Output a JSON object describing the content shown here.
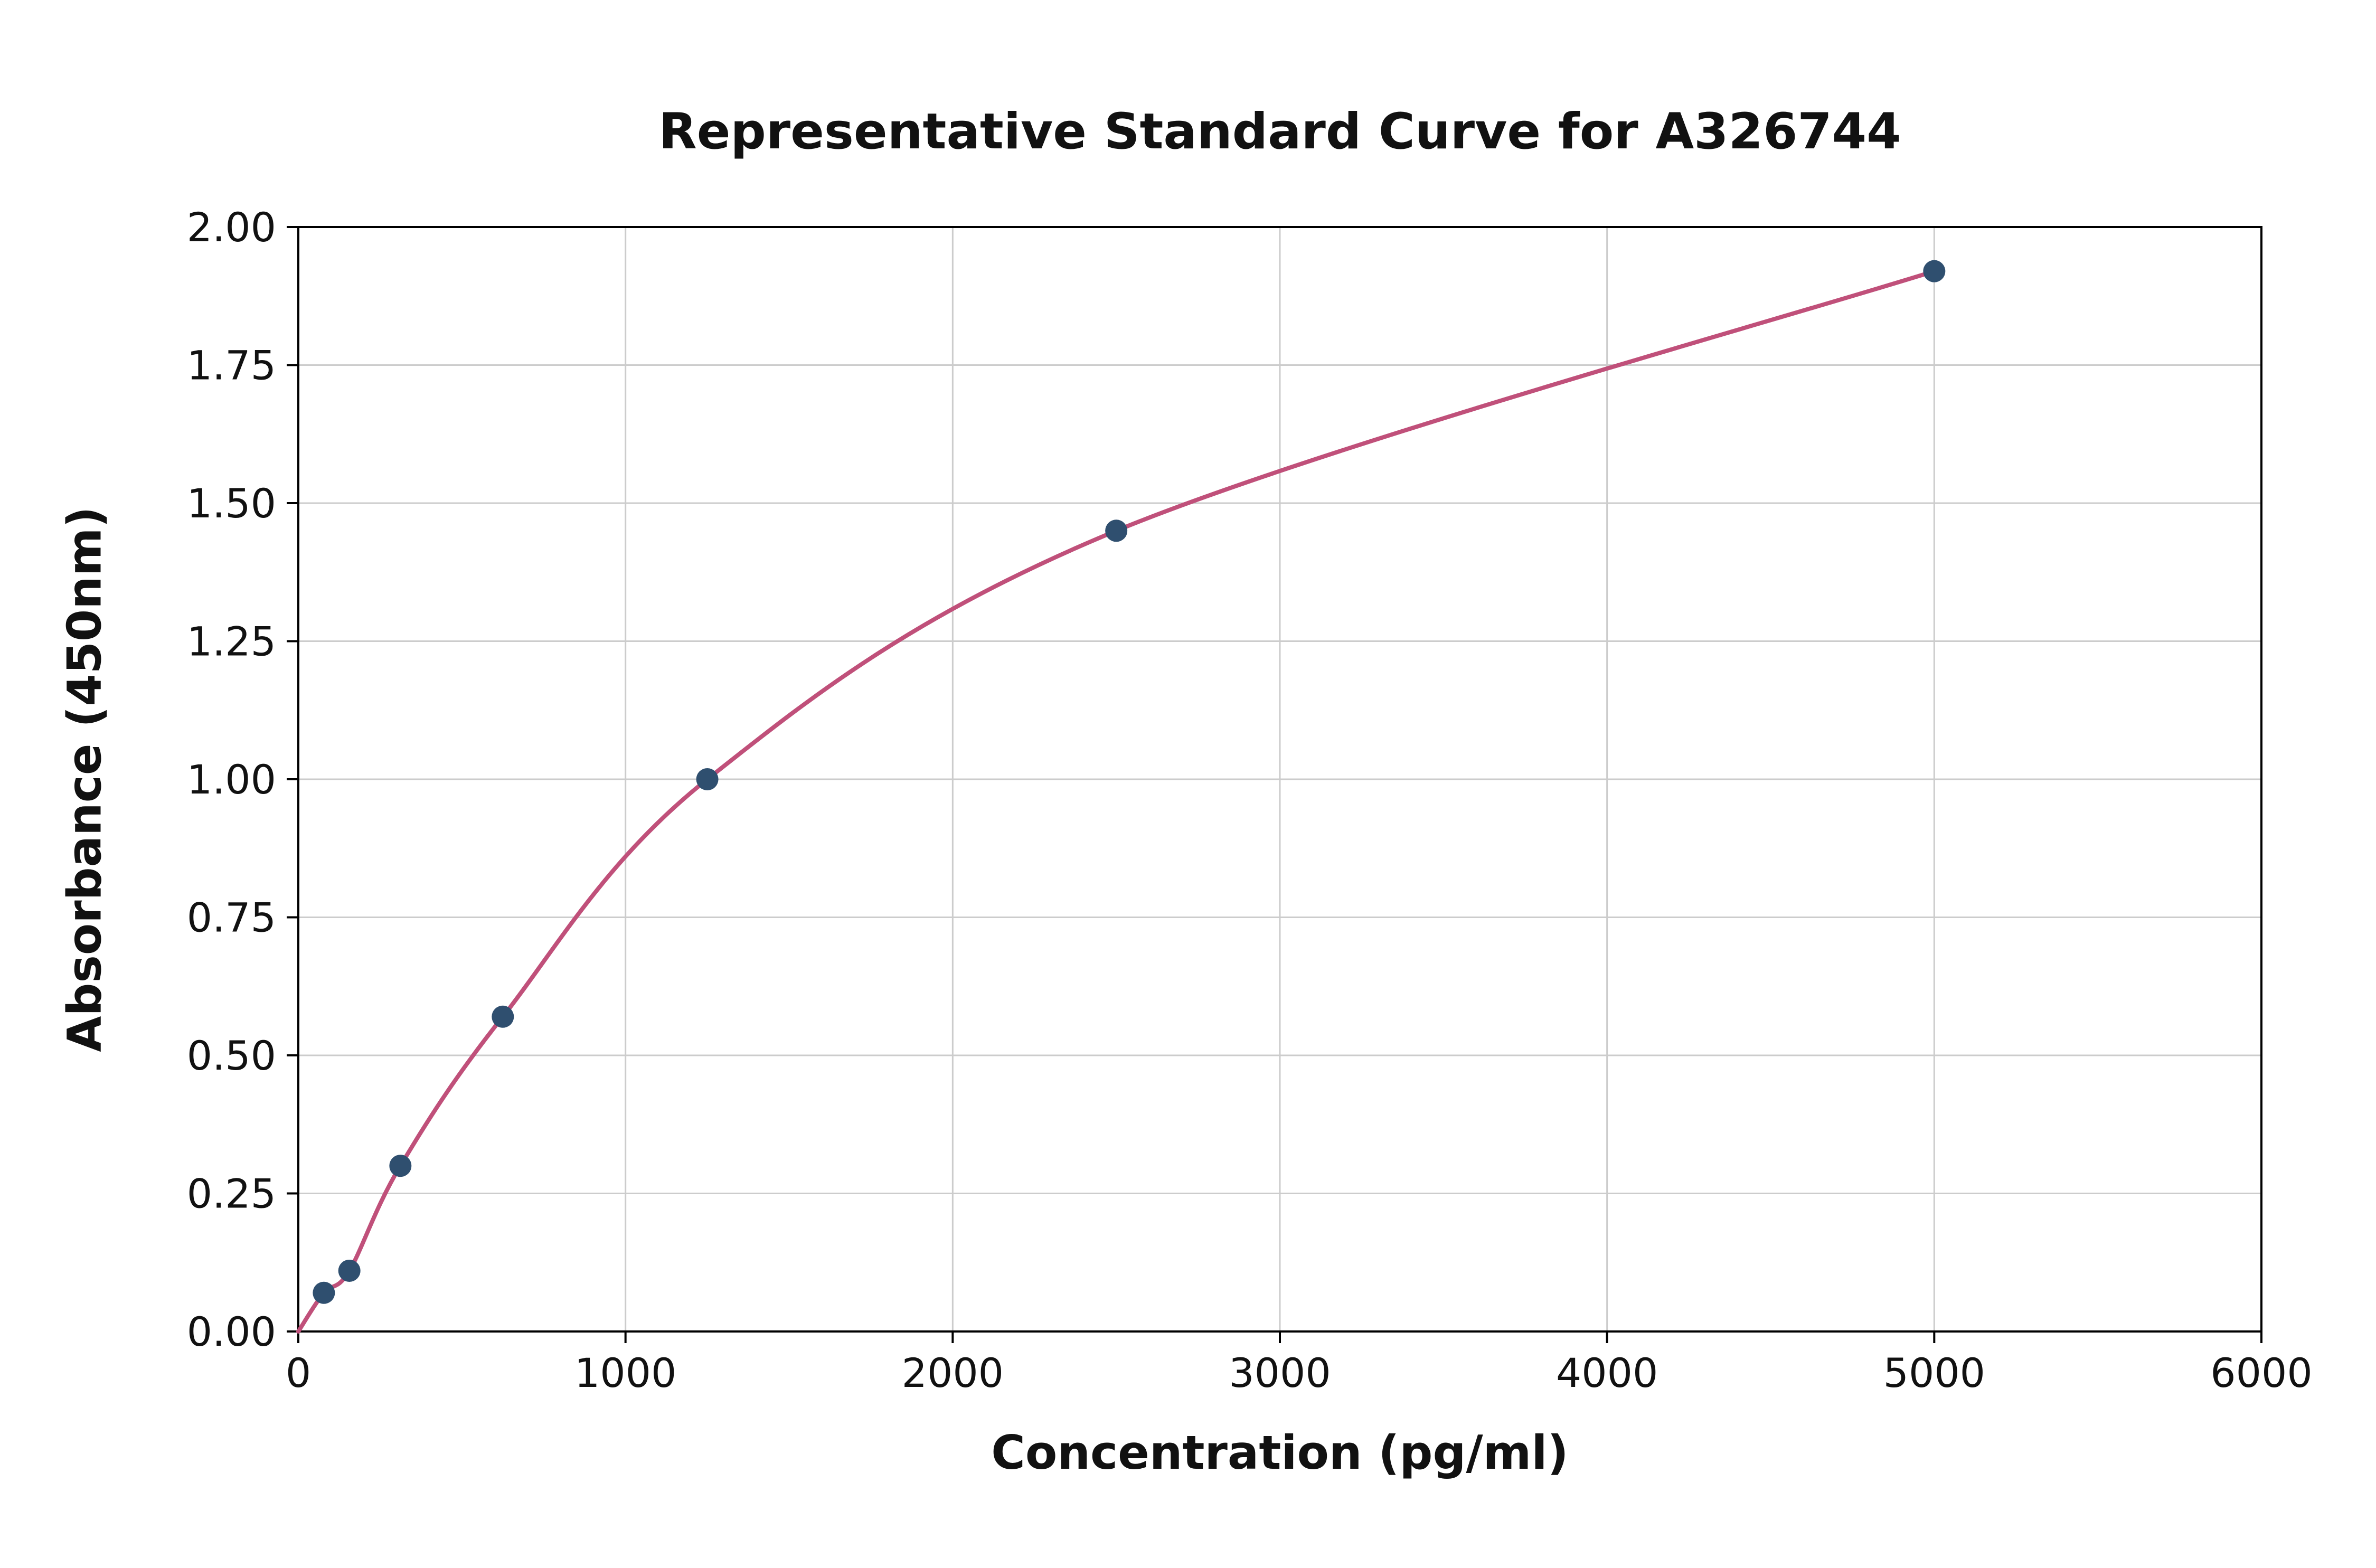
{
  "chart_data": {
    "type": "scatter",
    "title": "Representative Standard Curve for A326744",
    "xlabel": "Concentration (pg/ml)",
    "ylabel": "Absorbance (450nm)",
    "xlim": [
      0,
      6000
    ],
    "ylim": [
      0,
      2.0
    ],
    "xticks": [
      0,
      1000,
      2000,
      3000,
      4000,
      5000,
      6000
    ],
    "yticks": [
      0.0,
      0.25,
      0.5,
      0.75,
      1.0,
      1.25,
      1.5,
      1.75,
      2.0
    ],
    "xtick_labels": [
      "0",
      "1000",
      "2000",
      "3000",
      "4000",
      "5000",
      "6000"
    ],
    "ytick_labels": [
      "0.00",
      "0.25",
      "0.50",
      "0.75",
      "1.00",
      "1.25",
      "1.50",
      "1.75",
      "2.00"
    ],
    "grid": true,
    "legend": "none",
    "points": {
      "x": [
        78,
        156,
        312,
        625,
        1250,
        2500,
        5000
      ],
      "y": [
        0.07,
        0.11,
        0.3,
        0.57,
        1.0,
        1.45,
        1.92
      ]
    },
    "curve_start": {
      "x": 0,
      "y": 0.0
    },
    "colors": {
      "curve": "#c0507a",
      "marker": "#2f4f6f",
      "grid": "#cccccc",
      "axis": "#000000",
      "text": "#111111"
    }
  }
}
